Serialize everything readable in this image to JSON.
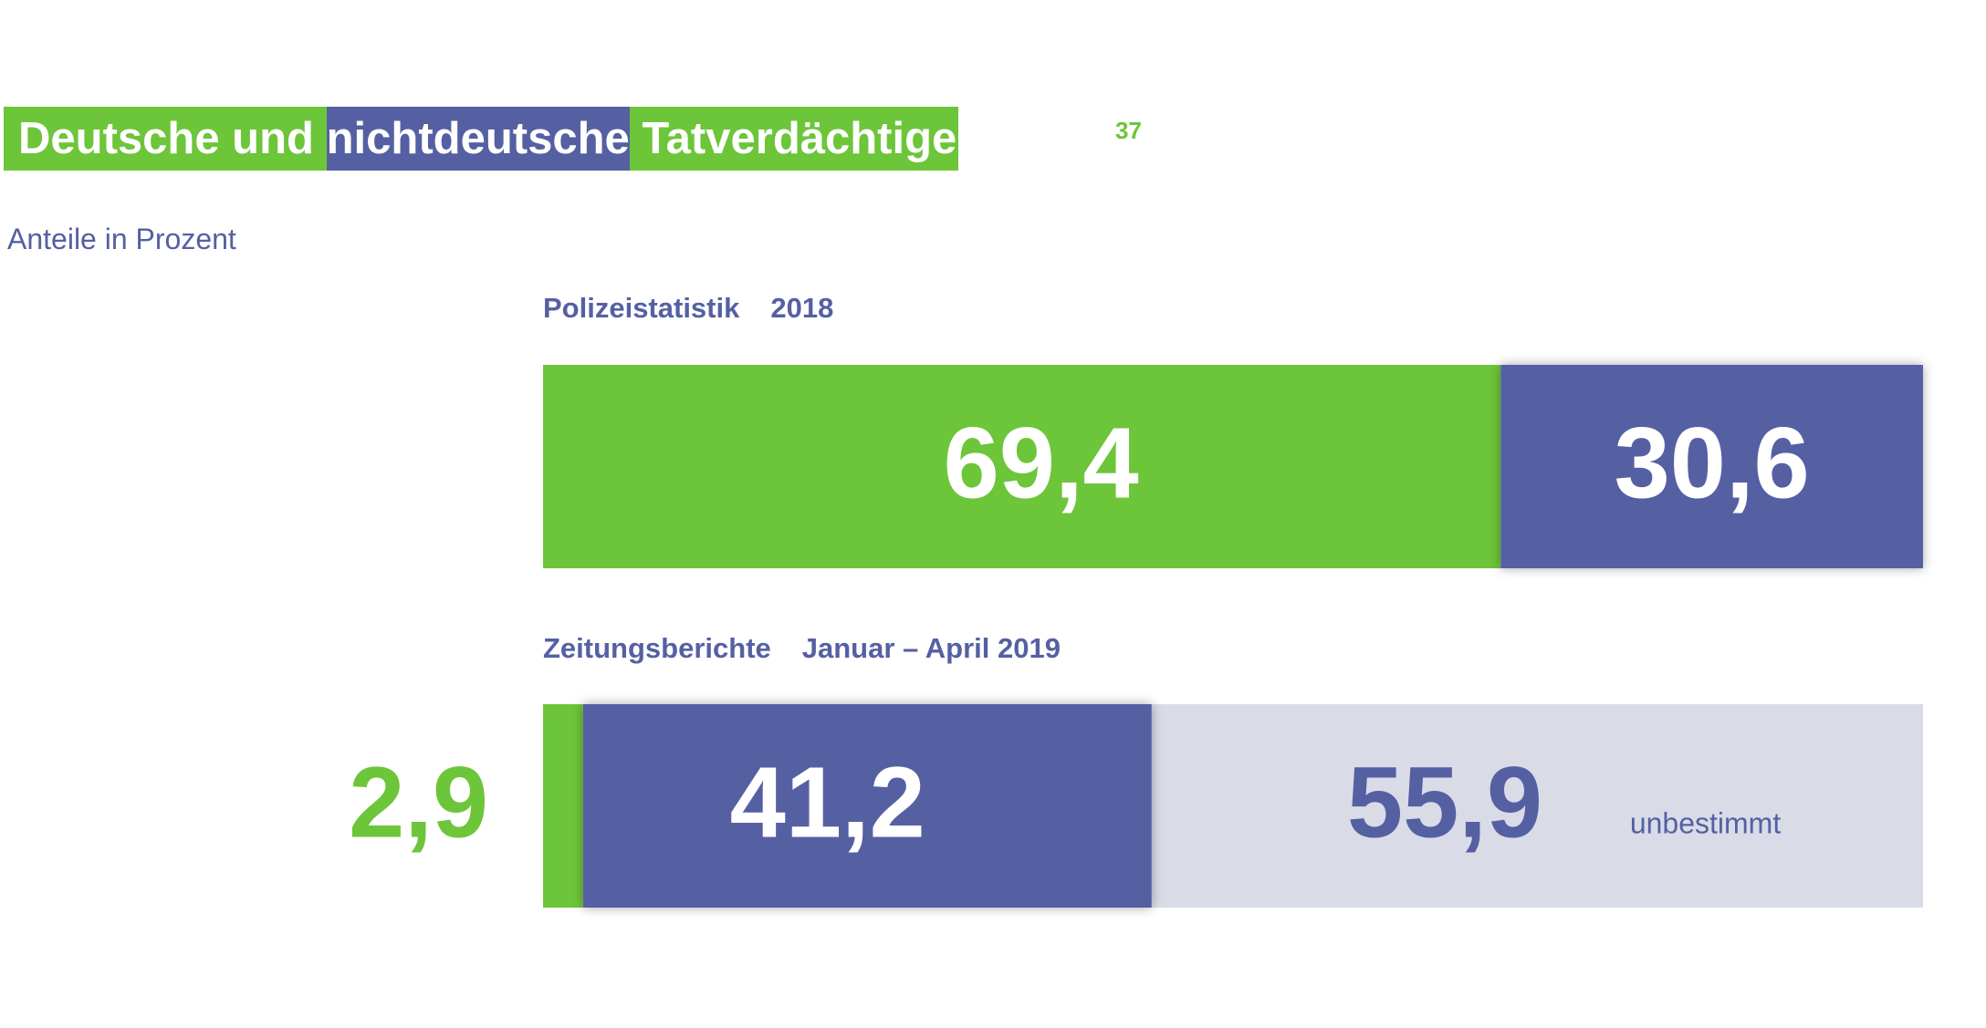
{
  "title": {
    "parts": [
      "Deutsche und ",
      "nichtdeutsche",
      " Tatverdächtige"
    ],
    "footnote": "37"
  },
  "subtitle": "Anteile in Prozent",
  "colors": {
    "deutsche": "#6dc53a",
    "nichtdeutsche": "#5560a3",
    "unbestimmt": "#d9dce7"
  },
  "chart_data": [
    {
      "type": "bar",
      "stacked": true,
      "orientation": "horizontal",
      "label_source": "Polizeistatistik",
      "label_period": "2018",
      "segments": [
        {
          "value": 69.4,
          "value_label": "69,4",
          "color": "#6dc53a"
        },
        {
          "value": 30.6,
          "value_label": "30,6",
          "color": "#5560a3"
        }
      ]
    },
    {
      "type": "bar",
      "stacked": true,
      "orientation": "horizontal",
      "label_source": "Zeitungsberichte",
      "label_period": "Januar – April 2019",
      "segments": [
        {
          "value": 2.9,
          "value_label": "2,9",
          "color": "#6dc53a"
        },
        {
          "value": 41.2,
          "value_label": "41,2",
          "color": "#5560a3"
        },
        {
          "value": 55.9,
          "value_label": "55,9",
          "color": "#d9dce7",
          "extra_label": "unbestimmt"
        }
      ]
    }
  ]
}
